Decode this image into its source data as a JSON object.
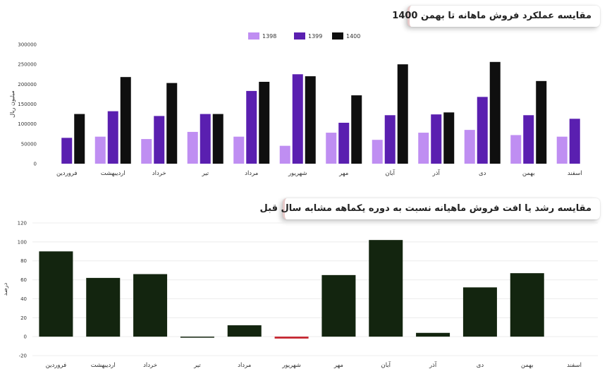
{
  "chart_data": [
    {
      "type": "bar",
      "title": "مقایسه عملکرد فروش ماهانه تا بهمن 1400",
      "ylabel": "میلیون ریال",
      "xlabel": "",
      "ylim": [
        0,
        300000
      ],
      "yticks": [
        "0",
        "50000",
        "100000",
        "150000",
        "200000",
        "250000",
        "300000"
      ],
      "categories": [
        "فروردین",
        "اردیبهشت",
        "خرداد",
        "تیر",
        "مرداد",
        "شهریور",
        "مهر",
        "آبان",
        "آذر",
        "دی",
        "بهمن",
        "اسفند"
      ],
      "series": [
        {
          "name": "1398",
          "color": "#bf8ef2",
          "values": [
            null,
            68000,
            62000,
            80000,
            68000,
            45000,
            78000,
            60000,
            78000,
            85000,
            72000,
            68000
          ]
        },
        {
          "name": "1399",
          "color": "#5a1fb0",
          "values": [
            65000,
            132000,
            120000,
            125000,
            183000,
            225000,
            103000,
            122000,
            124000,
            168000,
            122000,
            113000
          ]
        },
        {
          "name": "1400",
          "color": "#0f0f0f",
          "values": [
            125000,
            218000,
            203000,
            125000,
            206000,
            220000,
            172000,
            250000,
            129000,
            256000,
            208000,
            null
          ]
        }
      ],
      "legend_position": "top-center",
      "grid": false
    },
    {
      "type": "bar",
      "title": "مقایسه رشد یا افت فروش ماهیانه نسبت به دوره یکماهه مشابه سال قبل",
      "ylabel": "درصد",
      "xlabel": "",
      "ylim": [
        -20,
        120
      ],
      "yticks": [
        "-20",
        "0",
        "20",
        "40",
        "60",
        "80",
        "100",
        "120"
      ],
      "categories": [
        "فروردین",
        "اردیبهشت",
        "خرداد",
        "تیر",
        "مرداد",
        "شهریور",
        "مهر",
        "آبان",
        "آذر",
        "دی",
        "بهمن",
        "اسفند"
      ],
      "series": [
        {
          "values": [
            90,
            62,
            66,
            0,
            12,
            -2,
            65,
            102,
            4,
            52,
            67,
            null
          ]
        }
      ],
      "positive_color": "#13250f",
      "negative_color": "#c4202a",
      "grid": true
    }
  ]
}
